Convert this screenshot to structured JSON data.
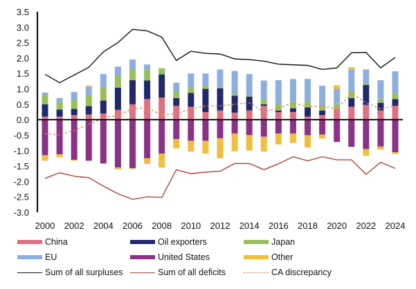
{
  "chart_data": {
    "type": "bar",
    "subtype": "stacked-bar-with-lines",
    "title": "",
    "xlabel": "",
    "ylabel": "",
    "ylim": [
      -3.0,
      3.5
    ],
    "yticks": [
      "3.5",
      "3.0",
      "2.5",
      "2.0",
      "1.5",
      "1.0",
      "0.5",
      "0.0",
      "-0.5",
      "-1.0",
      "-1.5",
      "-2.0",
      "-2.5",
      "-3.0"
    ],
    "ytick_values": [
      3.5,
      3.0,
      2.5,
      2.0,
      1.5,
      1.0,
      0.5,
      0.0,
      -0.5,
      -1.0,
      -1.5,
      -2.0,
      -2.5,
      -3.0
    ],
    "grid": false,
    "legend_position": "bottom",
    "categories": [
      "2000",
      "2001",
      "2002",
      "2003",
      "2004",
      "2005",
      "2006",
      "2007",
      "2008",
      "2009",
      "2010",
      "2011",
      "2012",
      "2013",
      "2014",
      "2015",
      "2016",
      "2017",
      "2018",
      "2019",
      "2020",
      "2021",
      "2022",
      "2023",
      "2024"
    ],
    "xtick_labels": [
      "2000",
      "2002",
      "2004",
      "2006",
      "2008",
      "2010",
      "2012",
      "2014",
      "2016",
      "2018",
      "2020",
      "2022",
      "2024"
    ],
    "series": [
      {
        "name": "China",
        "kind": "bar",
        "color": "#e0707f",
        "values": [
          0.1,
          0.1,
          0.15,
          0.17,
          0.2,
          0.32,
          0.5,
          0.67,
          0.72,
          0.45,
          0.42,
          0.25,
          0.3,
          0.23,
          0.3,
          0.45,
          0.25,
          0.25,
          0.1,
          0.15,
          0.35,
          0.42,
          0.48,
          0.3,
          0.45
        ]
      },
      {
        "name": "Oil exporters",
        "kind": "bar",
        "color": "#1f2a6e",
        "values": [
          0.4,
          0.23,
          0.2,
          0.27,
          0.42,
          0.72,
          0.78,
          0.6,
          0.75,
          0.25,
          0.45,
          0.75,
          0.72,
          0.55,
          0.45,
          0.05,
          0.05,
          0.12,
          0.3,
          0.15,
          0.0,
          0.28,
          0.65,
          0.25,
          0.22
        ]
      },
      {
        "name": "Japan",
        "kind": "bar",
        "color": "#98c05a",
        "values": [
          0.3,
          0.25,
          0.3,
          0.35,
          0.43,
          0.38,
          0.35,
          0.35,
          0.2,
          0.2,
          0.18,
          0.1,
          0.03,
          0.05,
          0.05,
          0.15,
          0.2,
          0.2,
          0.2,
          0.15,
          0.15,
          0.2,
          0.05,
          0.13,
          0.18
        ]
      },
      {
        "name": "EU",
        "kind": "bar",
        "color": "#8eaee0",
        "values": [
          0.08,
          0.12,
          0.25,
          0.28,
          0.43,
          0.3,
          0.32,
          0.17,
          0.0,
          0.3,
          0.45,
          0.4,
          0.58,
          0.75,
          0.68,
          0.62,
          0.78,
          0.75,
          0.72,
          0.65,
          0.5,
          0.72,
          0.45,
          0.6,
          0.72
        ]
      },
      {
        "name": "United States",
        "kind": "bar",
        "color": "#8b3288",
        "values": [
          -1.15,
          -1.12,
          -1.3,
          -1.33,
          -1.42,
          -1.55,
          -1.57,
          -1.25,
          -1.1,
          -0.63,
          -0.68,
          -0.68,
          -0.6,
          -0.45,
          -0.5,
          -0.55,
          -0.45,
          -0.45,
          -0.5,
          -0.48,
          -0.72,
          -0.88,
          -0.95,
          -0.87,
          -1.05
        ]
      },
      {
        "name": "Other",
        "kind": "bar",
        "color": "#f2be3c",
        "values": [
          -0.18,
          -0.1,
          -0.03,
          0.04,
          0.0,
          -0.06,
          -0.03,
          -0.18,
          -0.45,
          -0.3,
          -0.35,
          -0.42,
          -0.65,
          -0.57,
          -0.5,
          -0.48,
          -0.35,
          -0.3,
          -0.4,
          -0.13,
          0.12,
          0.08,
          -0.22,
          -0.1,
          -0.06
        ]
      },
      {
        "name": "Sum of all surpluses",
        "kind": "line",
        "color": "#111111",
        "values": [
          1.47,
          1.2,
          1.45,
          1.7,
          2.2,
          2.5,
          2.93,
          2.88,
          2.68,
          1.92,
          2.22,
          2.15,
          2.13,
          1.97,
          1.95,
          1.9,
          1.8,
          1.78,
          1.76,
          1.63,
          1.68,
          2.17,
          2.18,
          1.68,
          2.02
        ]
      },
      {
        "name": "Sum of all deficits",
        "kind": "line",
        "color": "#b5423c",
        "values": [
          -1.9,
          -1.72,
          -1.83,
          -1.88,
          -2.15,
          -2.4,
          -2.58,
          -2.5,
          -2.52,
          -1.62,
          -1.75,
          -1.7,
          -1.67,
          -1.42,
          -1.42,
          -1.62,
          -1.43,
          -1.2,
          -1.33,
          -1.2,
          -1.3,
          -1.3,
          -1.77,
          -1.38,
          -1.58
        ]
      },
      {
        "name": "CA discrepancy",
        "kind": "line",
        "style": "dashed",
        "color": "#e08a5a",
        "values": [
          -0.45,
          -0.5,
          -0.35,
          -0.15,
          0.05,
          0.15,
          0.35,
          0.4,
          0.15,
          0.2,
          0.35,
          0.45,
          0.45,
          0.5,
          0.55,
          0.25,
          0.38,
          0.55,
          0.43,
          0.45,
          0.35,
          0.85,
          0.55,
          0.35,
          0.45
        ]
      }
    ]
  },
  "legend": {
    "items": [
      {
        "label": "China",
        "color": "#e0707f",
        "type": "bar"
      },
      {
        "label": "Oil exporters",
        "color": "#1f2a6e",
        "type": "bar"
      },
      {
        "label": "Japan",
        "color": "#98c05a",
        "type": "bar"
      },
      {
        "label": "EU",
        "color": "#8eaee0",
        "type": "bar"
      },
      {
        "label": "United States",
        "color": "#8b3288",
        "type": "bar"
      },
      {
        "label": "Other",
        "color": "#f2be3c",
        "type": "bar"
      },
      {
        "label": "Sum of all surpluses",
        "color": "#111111",
        "type": "line"
      },
      {
        "label": "Sum of all deficits",
        "color": "#b5423c",
        "type": "line"
      },
      {
        "label": "CA discrepancy",
        "color": "#e08a5a",
        "type": "dash"
      }
    ]
  }
}
